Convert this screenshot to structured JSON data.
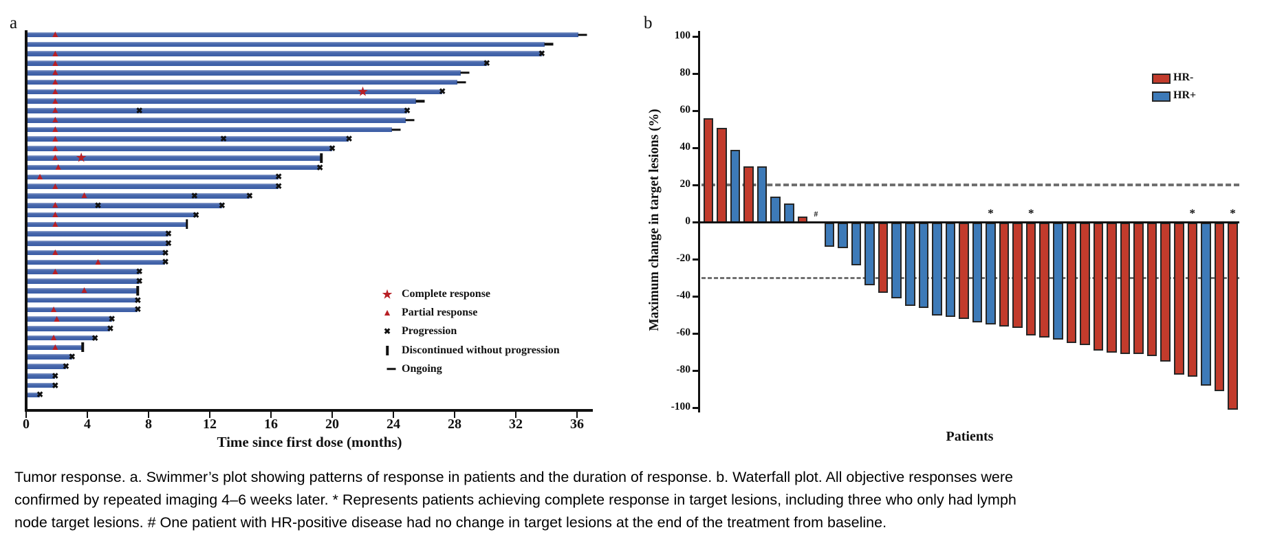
{
  "figure": {
    "panel_a_label": "a",
    "panel_b_label": "b"
  },
  "caption": {
    "lines": [
      "Tumor response. a. Swimmer’s plot showing patterns of response in patients and the duration of response. b. Waterfall plot. All objective responses were",
      "confirmed by repeated imaging 4–6 weeks later. * Represents patients achieving complete response in target lesions, including three who only had lymph",
      "node target lesions. # One patient with HR-positive disease had no change in target lesions at the end of the treatment from baseline."
    ]
  },
  "chart_data": [
    {
      "type": "swimmer",
      "panel_label": "a",
      "xlabel": "Time since first dose (months)",
      "x_ticks": [
        0,
        4,
        8,
        12,
        16,
        20,
        24,
        28,
        32,
        36
      ],
      "xlim": [
        0,
        37
      ],
      "bar_color": "#3a5ca4",
      "marker_red": "#b81f25",
      "marker_black": "#111111",
      "legend": [
        {
          "marker": "star",
          "label": "Complete response"
        },
        {
          "marker": "triangle",
          "label": "Partial response"
        },
        {
          "marker": "x",
          "label": "Progression"
        },
        {
          "marker": "bar",
          "label": "Discontinued without progression"
        },
        {
          "marker": "dash",
          "label": "Ongoing"
        }
      ],
      "rows": [
        {
          "months": 36.1,
          "pr": 1.9,
          "end": "ongoing"
        },
        {
          "months": 33.9,
          "end": "ongoing"
        },
        {
          "months": 33.7,
          "pr": 1.9,
          "end": "prog"
        },
        {
          "months": 30.1,
          "pr": 1.9,
          "end": "prog"
        },
        {
          "months": 28.4,
          "pr": 1.9,
          "end": "ongoing"
        },
        {
          "months": 28.2,
          "pr": 1.9,
          "end": "ongoing"
        },
        {
          "months": 27.2,
          "pr": 1.9,
          "cr": 22.0,
          "end": "prog"
        },
        {
          "months": 25.5,
          "pr": 1.9,
          "end": "ongoing"
        },
        {
          "months": 24.9,
          "pr": 1.9,
          "mid": [
            7.4
          ],
          "end": "prog"
        },
        {
          "months": 24.8,
          "pr": 1.9,
          "end": "ongoing"
        },
        {
          "months": 23.9,
          "pr": 1.9,
          "end": "ongoing"
        },
        {
          "months": 21.1,
          "pr": 1.9,
          "mid": [
            12.9
          ],
          "end": "prog"
        },
        {
          "months": 20.0,
          "pr": 1.9,
          "end": "prog"
        },
        {
          "months": 19.3,
          "pr": 1.9,
          "cr": 3.6,
          "end": "disc"
        },
        {
          "months": 19.2,
          "pr": 2.1,
          "end": "prog"
        },
        {
          "months": 16.5,
          "pr": 0.9,
          "end": "prog"
        },
        {
          "months": 16.5,
          "pr": 1.9,
          "end": "prog"
        },
        {
          "months": 14.6,
          "pr": 3.8,
          "mid": [
            11.0
          ],
          "end": "prog"
        },
        {
          "months": 12.8,
          "pr": 1.9,
          "mid": [
            4.7
          ],
          "end": "prog"
        },
        {
          "months": 11.1,
          "pr": 1.9,
          "end": "prog"
        },
        {
          "months": 10.5,
          "pr": 1.9,
          "end": "disc"
        },
        {
          "months": 9.3,
          "end": "prog"
        },
        {
          "months": 9.3,
          "end": "prog"
        },
        {
          "months": 9.1,
          "pr": 1.9,
          "end": "prog"
        },
        {
          "months": 9.1,
          "pr": 4.7,
          "end": "prog"
        },
        {
          "months": 7.4,
          "pr": 1.9,
          "end": "prog"
        },
        {
          "months": 7.4,
          "end": "prog"
        },
        {
          "months": 7.3,
          "pr": 3.8,
          "end": "disc"
        },
        {
          "months": 7.3,
          "end": "prog"
        },
        {
          "months": 7.3,
          "pr": 1.8,
          "end": "prog"
        },
        {
          "months": 5.6,
          "pr": 2.0,
          "end": "prog"
        },
        {
          "months": 5.5,
          "end": "prog"
        },
        {
          "months": 4.5,
          "pr": 1.8,
          "end": "prog"
        },
        {
          "months": 3.7,
          "pr": 1.9,
          "end": "disc"
        },
        {
          "months": 3.0,
          "end": "prog"
        },
        {
          "months": 2.6,
          "end": "prog"
        },
        {
          "months": 1.9,
          "end": "prog"
        },
        {
          "months": 1.9,
          "end": "prog"
        },
        {
          "months": 0.9,
          "end": "prog"
        }
      ]
    },
    {
      "type": "bar",
      "panel_label": "b",
      "ylabel": "Maximum change in target lesions (%)",
      "xlabel": "Patients",
      "y_ticks": [
        100,
        80,
        60,
        40,
        20,
        0,
        -20,
        -40,
        -60,
        -80,
        -100
      ],
      "ylim": [
        -100,
        100
      ],
      "reference_lines": [
        20,
        -30
      ],
      "dash_color": "#6f6f6f",
      "legend": [
        {
          "label": "HR-",
          "color": "#c23b2c"
        },
        {
          "label": "HR+",
          "color": "#3d7ab8"
        }
      ],
      "patients": [
        {
          "value": 56,
          "group": "HR-"
        },
        {
          "value": 51,
          "group": "HR-"
        },
        {
          "value": 39,
          "group": "HR+"
        },
        {
          "value": 30,
          "group": "HR-"
        },
        {
          "value": 30,
          "group": "HR+"
        },
        {
          "value": 14,
          "group": "HR+"
        },
        {
          "value": 10,
          "group": "HR+"
        },
        {
          "value": 3,
          "group": "HR-"
        },
        {
          "value": 0,
          "group": "HR+",
          "mark": "#"
        },
        {
          "value": -12,
          "group": "HR+"
        },
        {
          "value": -13,
          "group": "HR+"
        },
        {
          "value": -22,
          "group": "HR+"
        },
        {
          "value": -33,
          "group": "HR+"
        },
        {
          "value": -37,
          "group": "HR-"
        },
        {
          "value": -40,
          "group": "HR+"
        },
        {
          "value": -44,
          "group": "HR+"
        },
        {
          "value": -45,
          "group": "HR+"
        },
        {
          "value": -49,
          "group": "HR+"
        },
        {
          "value": -50,
          "group": "HR+"
        },
        {
          "value": -51,
          "group": "HR-"
        },
        {
          "value": -53,
          "group": "HR+"
        },
        {
          "value": -54,
          "group": "HR+",
          "mark": "*"
        },
        {
          "value": -55,
          "group": "HR-"
        },
        {
          "value": -56,
          "group": "HR-"
        },
        {
          "value": -60,
          "group": "HR-",
          "mark": "*"
        },
        {
          "value": -61,
          "group": "HR-"
        },
        {
          "value": -62,
          "group": "HR+"
        },
        {
          "value": -64,
          "group": "HR-"
        },
        {
          "value": -65,
          "group": "HR-"
        },
        {
          "value": -68,
          "group": "HR-"
        },
        {
          "value": -69,
          "group": "HR-"
        },
        {
          "value": -70,
          "group": "HR-"
        },
        {
          "value": -70,
          "group": "HR-"
        },
        {
          "value": -71,
          "group": "HR-"
        },
        {
          "value": -74,
          "group": "HR-"
        },
        {
          "value": -81,
          "group": "HR-"
        },
        {
          "value": -82,
          "group": "HR-",
          "mark": "*"
        },
        {
          "value": -87,
          "group": "HR+"
        },
        {
          "value": -90,
          "group": "HR-"
        },
        {
          "value": -100,
          "group": "HR-",
          "mark": "*"
        }
      ]
    }
  ]
}
